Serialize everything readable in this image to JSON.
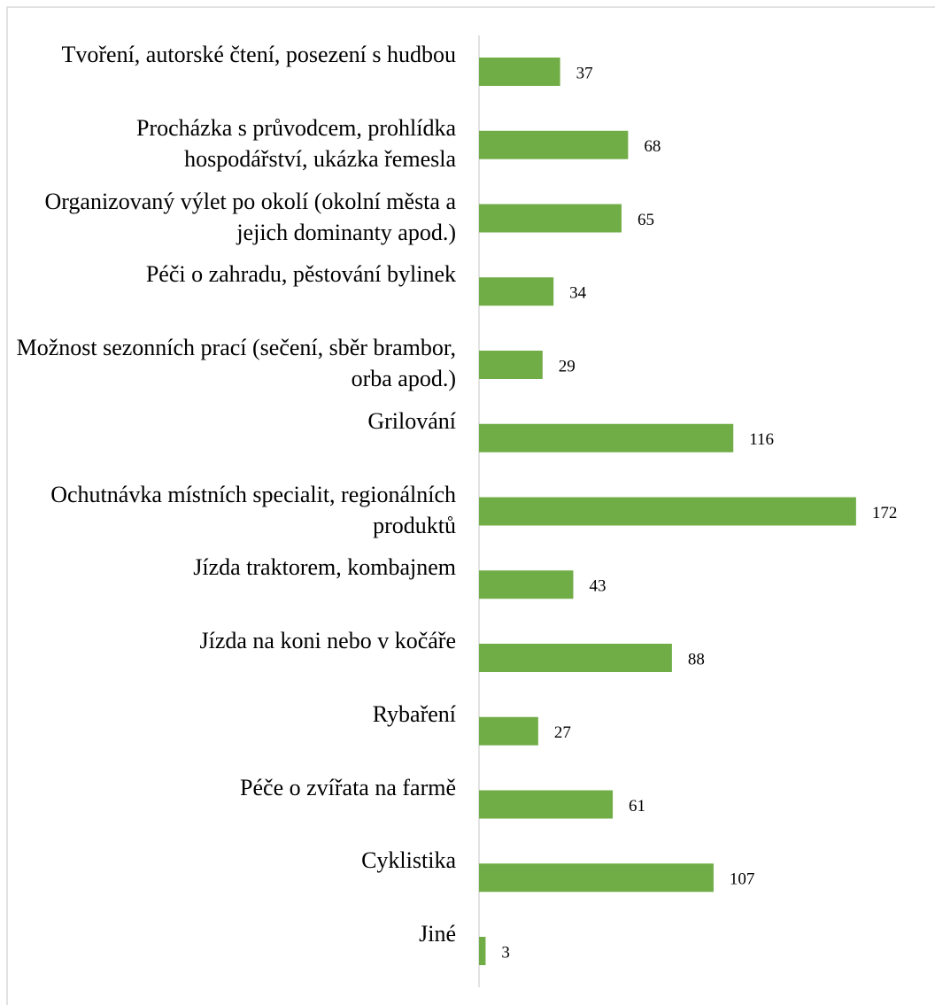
{
  "chart_data": {
    "type": "barh",
    "categories": [
      "Tvoření, autorské čtení, posezení s hudbou",
      "Procházka s průvodcem, prohlídka hospodářství, ukázka řemesla",
      "Organizovaný výlet po okolí (okolní města a jejich dominanty apod.)",
      "Péči o zahradu, pěstování bylinek",
      "Možnost sezonních prací (sečení, sběr brambor, orba apod.)",
      "Grilování",
      "Ochutnávka místních specialit, regionálních produktů",
      "Jízda traktorem, kombajnem",
      "Jízda na koni nebo v kočáře",
      "Rybaření",
      "Péče o zvířata na farmě",
      "Cyklistika",
      "Jiné"
    ],
    "values": [
      37,
      68,
      65,
      34,
      29,
      116,
      172,
      43,
      88,
      27,
      61,
      107,
      3
    ],
    "color": "#70ad47"
  }
}
